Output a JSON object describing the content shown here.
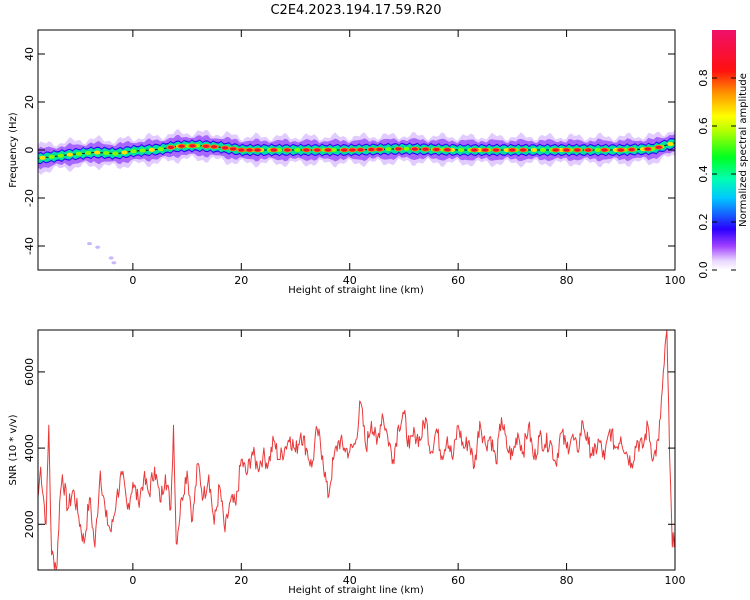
{
  "figure": {
    "title": "C2E4.2023.194.17.59.R20"
  },
  "chart_data": [
    {
      "type": "heatmap",
      "xlabel": "Height of straight line (km)",
      "ylabel": "Frequency (Hz)",
      "xlim": [
        -17.5,
        100
      ],
      "ylim": [
        -50,
        50
      ],
      "xticks": [
        0,
        20,
        40,
        60,
        80,
        100
      ],
      "yticks": [
        -40,
        -20,
        0,
        20,
        40
      ],
      "colorbar": {
        "label": "Normalized spectral amplitude",
        "ticks": [
          0.0,
          0.2,
          0.4,
          0.6,
          0.8
        ],
        "ticklabels": [
          "0.0",
          "0.2",
          "0.4",
          "0.6",
          "0.8"
        ],
        "range": [
          0,
          1
        ],
        "colormap": "hsv-rainbow (white-purple-blue-cyan-green-yellow-red)"
      },
      "centerline": {
        "description": "approximate peak frequency (Hz) vs height (km)",
        "x": [
          -17.5,
          -12,
          -7,
          -3,
          0,
          5,
          8,
          12,
          16,
          20,
          30,
          40,
          50,
          60,
          70,
          80,
          90,
          96,
          100
        ],
        "y": [
          -3.5,
          -2,
          -1,
          -1.5,
          -0.5,
          0.3,
          1.5,
          1.8,
          1.2,
          0,
          0,
          0,
          0.5,
          0,
          0,
          0,
          0,
          0.5,
          3
        ]
      },
      "hot_spots": {
        "description": "heights (km) where normalized amplitude is ~1 (red)",
        "x": [
          7,
          9,
          11,
          13.5,
          15,
          17,
          18.5,
          20,
          21.5,
          23,
          26,
          28.5,
          32,
          34,
          36,
          39,
          40.5,
          42,
          44,
          45.5,
          49,
          52,
          54,
          56,
          58,
          63,
          65,
          67,
          70,
          72,
          78,
          80,
          82,
          84,
          87,
          90,
          92,
          95,
          97
        ]
      },
      "isolated_points": [
        {
          "x": -8,
          "y": -39
        },
        {
          "x": -6.5,
          "y": -40.5
        },
        {
          "x": -4,
          "y": -45
        },
        {
          "x": -3.5,
          "y": -47
        }
      ]
    },
    {
      "type": "line",
      "xlabel": "Height of straight line (km)",
      "ylabel": "SNR (10 * v/v)",
      "xlim": [
        -17.5,
        100
      ],
      "ylim": [
        800,
        7100
      ],
      "xticks": [
        0,
        20,
        40,
        60,
        80,
        100
      ],
      "yticks": [
        2000,
        4000,
        6000
      ],
      "series": [
        {
          "color": "#e8393a",
          "x": [
            -17.5,
            -17,
            -16,
            -15.5,
            -15,
            -14,
            -13.5,
            -13,
            -12,
            -11,
            -10,
            -9,
            -8,
            -7,
            -6,
            -5,
            -4,
            -3,
            -2,
            -1,
            0,
            1,
            2,
            3,
            4,
            5,
            6,
            7,
            7.5,
            8,
            9,
            10,
            11,
            12,
            13,
            14,
            15,
            16,
            17,
            18,
            19,
            20,
            21,
            22,
            23,
            24,
            25,
            26,
            27,
            28,
            29,
            30,
            31,
            32,
            33,
            34,
            35,
            36,
            37,
            38,
            39,
            40,
            41,
            42,
            43,
            44,
            45,
            46,
            47,
            48,
            49,
            50,
            51,
            52,
            53,
            54,
            55,
            56,
            57,
            58,
            59,
            60,
            61,
            62,
            63,
            64,
            65,
            66,
            67,
            68,
            69,
            70,
            71,
            72,
            73,
            74,
            75,
            76,
            77,
            78,
            79,
            80,
            81,
            82,
            83,
            84,
            85,
            86,
            87,
            88,
            89,
            90,
            91,
            92,
            93,
            94,
            95,
            96,
            97,
            98,
            98.5,
            99,
            99.5,
            100
          ],
          "y": [
            2700,
            3500,
            2000,
            4600,
            1200,
            900,
            2600,
            3300,
            2400,
            2900,
            2200,
            1500,
            2700,
            1400,
            3400,
            2200,
            1800,
            2700,
            3300,
            2400,
            3100,
            2600,
            3200,
            2800,
            3500,
            2600,
            3300,
            2400,
            4600,
            1500,
            2700,
            3400,
            2100,
            3600,
            2700,
            3300,
            2000,
            3000,
            1800,
            2600,
            2500,
            3700,
            3300,
            3900,
            3500,
            3800,
            3600,
            4200,
            3700,
            4000,
            4300,
            3900,
            4400,
            4000,
            3500,
            4500,
            3800,
            2700,
            3700,
            4200,
            4000,
            3900,
            4100,
            5200,
            4000,
            4700,
            4100,
            4900,
            4300,
            3700,
            4600,
            4900,
            4000,
            4400,
            4200,
            4800,
            3900,
            4500,
            3800,
            4300,
            3700,
            4600,
            4000,
            4200,
            3500,
            4700,
            4100,
            4300,
            3600,
            4800,
            4000,
            3800,
            4400,
            3900,
            4600,
            3700,
            4300,
            4100,
            4200,
            3600,
            4400,
            4000,
            4300,
            3900,
            4700,
            4100,
            3800,
            4200,
            3700,
            4500,
            4000,
            4300,
            3900,
            3600,
            4200,
            4000,
            4600,
            3700,
            4200,
            6200,
            7100,
            3800,
            1400,
            1800
          ]
        }
      ]
    }
  ]
}
